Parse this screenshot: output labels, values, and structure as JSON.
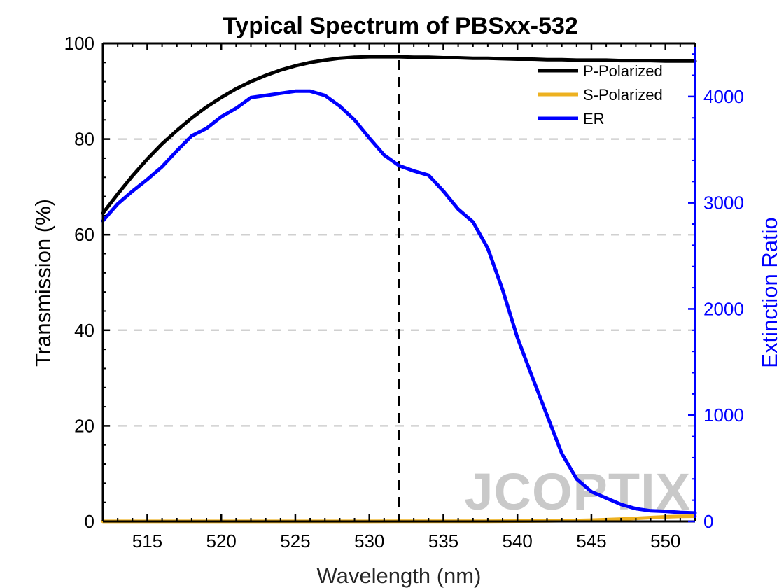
{
  "chart_data": {
    "type": "line",
    "title": "Typical Spectrum of PBSxx-532",
    "xlabel": "Wavelength (nm)",
    "ylabel": "Transmission (%)",
    "ylabel_right": "Extinction Ratio",
    "xlim": [
      512,
      552
    ],
    "ylim": [
      0,
      100
    ],
    "ylim_right": [
      0,
      4500
    ],
    "x_ticks": [
      515,
      520,
      525,
      530,
      535,
      540,
      545,
      550
    ],
    "y_ticks": [
      0,
      20,
      40,
      60,
      80,
      100
    ],
    "y_ticks_right": [
      0,
      1000,
      2000,
      3000,
      4000
    ],
    "grid": "horizontal dashed",
    "legend_position": "top-right",
    "reference_line_x": 532,
    "watermark": "JCOPTIX",
    "series": [
      {
        "name": "P-Polarized",
        "axis": "left",
        "color": "#000000",
        "x": [
          512,
          513,
          514,
          515,
          516,
          517,
          518,
          519,
          520,
          521,
          522,
          523,
          524,
          525,
          526,
          527,
          528,
          529,
          530,
          531,
          532,
          533,
          534,
          535,
          536,
          537,
          538,
          539,
          540,
          541,
          542,
          543,
          544,
          545,
          546,
          547,
          548,
          549,
          550,
          551,
          552
        ],
        "values": [
          64.5,
          68.5,
          72.3,
          75.8,
          79.0,
          81.8,
          84.4,
          86.7,
          88.7,
          90.5,
          92.0,
          93.3,
          94.4,
          95.3,
          96.0,
          96.5,
          96.9,
          97.1,
          97.2,
          97.2,
          97.2,
          97.1,
          97.1,
          97.0,
          97.0,
          96.9,
          96.9,
          96.8,
          96.7,
          96.7,
          96.6,
          96.6,
          96.5,
          96.5,
          96.5,
          96.4,
          96.4,
          96.4,
          96.3,
          96.3,
          96.3
        ]
      },
      {
        "name": "S-Polarized",
        "axis": "left",
        "color": "#edb120",
        "x": [
          512,
          514,
          516,
          518,
          520,
          522,
          524,
          526,
          528,
          530,
          532,
          534,
          536,
          538,
          540,
          542,
          544,
          545,
          546,
          547,
          548,
          549,
          550,
          551,
          552
        ],
        "values": [
          0.02,
          0.02,
          0.02,
          0.02,
          0.02,
          0.02,
          0.02,
          0.02,
          0.02,
          0.02,
          0.03,
          0.03,
          0.04,
          0.05,
          0.08,
          0.12,
          0.2,
          0.28,
          0.38,
          0.5,
          0.65,
          0.8,
          0.95,
          1.05,
          1.1
        ]
      },
      {
        "name": "ER",
        "axis": "right",
        "color": "#0000ff",
        "x": [
          512,
          513,
          514,
          515,
          516,
          517,
          518,
          519,
          520,
          521,
          522,
          523,
          524,
          525,
          526,
          527,
          528,
          529,
          530,
          531,
          532,
          533,
          534,
          535,
          536,
          537,
          538,
          539,
          540,
          541,
          542,
          543,
          544,
          545,
          546,
          547,
          548,
          549,
          550,
          551,
          552
        ],
        "values": [
          2830,
          2990,
          3110,
          3220,
          3340,
          3490,
          3630,
          3700,
          3810,
          3890,
          3990,
          4010,
          4030,
          4050,
          4050,
          4010,
          3910,
          3780,
          3610,
          3450,
          3350,
          3300,
          3260,
          3110,
          2940,
          2820,
          2570,
          2180,
          1730,
          1360,
          1000,
          640,
          400,
          280,
          220,
          160,
          120,
          100,
          95,
          85,
          80
        ]
      }
    ]
  }
}
